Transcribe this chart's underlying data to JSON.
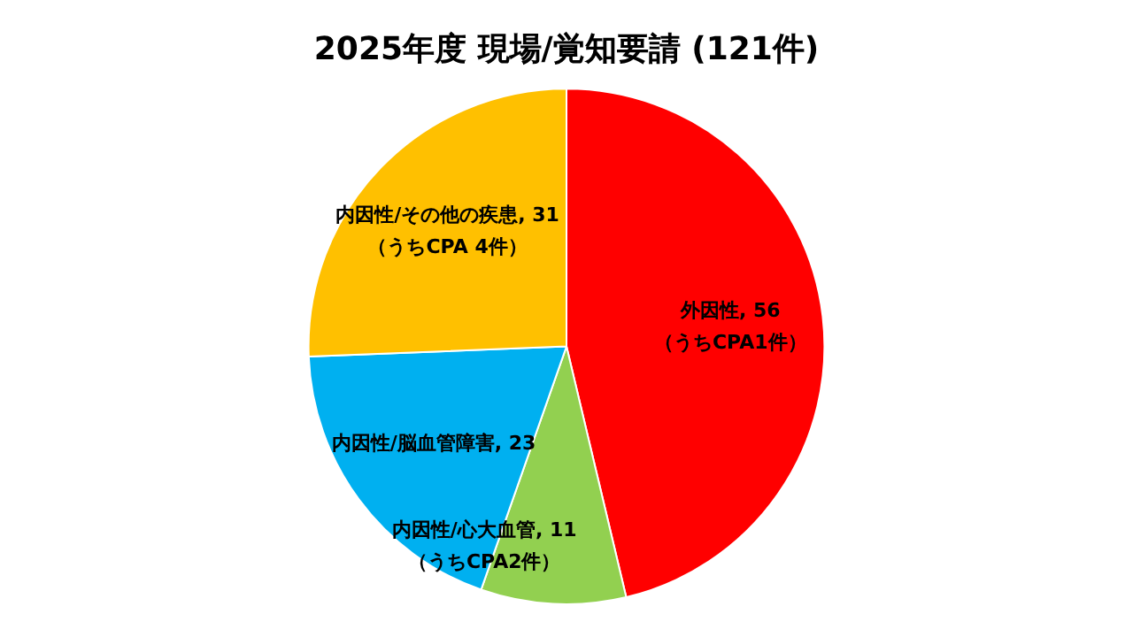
{
  "chart_data": {
    "type": "pie",
    "title": "2025年度 現場/覚知要請 (121件)",
    "categories": [
      "外因性",
      "内因性/心大血管",
      "内因性/脳血管障害",
      "内因性/その他の疾患"
    ],
    "values": [
      56,
      11,
      23,
      31
    ],
    "colors": [
      "#ff0000",
      "#92d050",
      "#00b0f0",
      "#ffc000"
    ],
    "value_labels": [
      ", 56",
      ", 11",
      ", 23",
      ", 31"
    ],
    "legend": false,
    "annotations": [
      {
        "text": "（うちCPA1件）",
        "x": "外因性"
      },
      {
        "text": "（うちCPA2件）",
        "x": "内因性/心大血管"
      },
      {
        "text": "（うちCPA 4件）",
        "x": "内因性/その他の疾患"
      }
    ]
  }
}
